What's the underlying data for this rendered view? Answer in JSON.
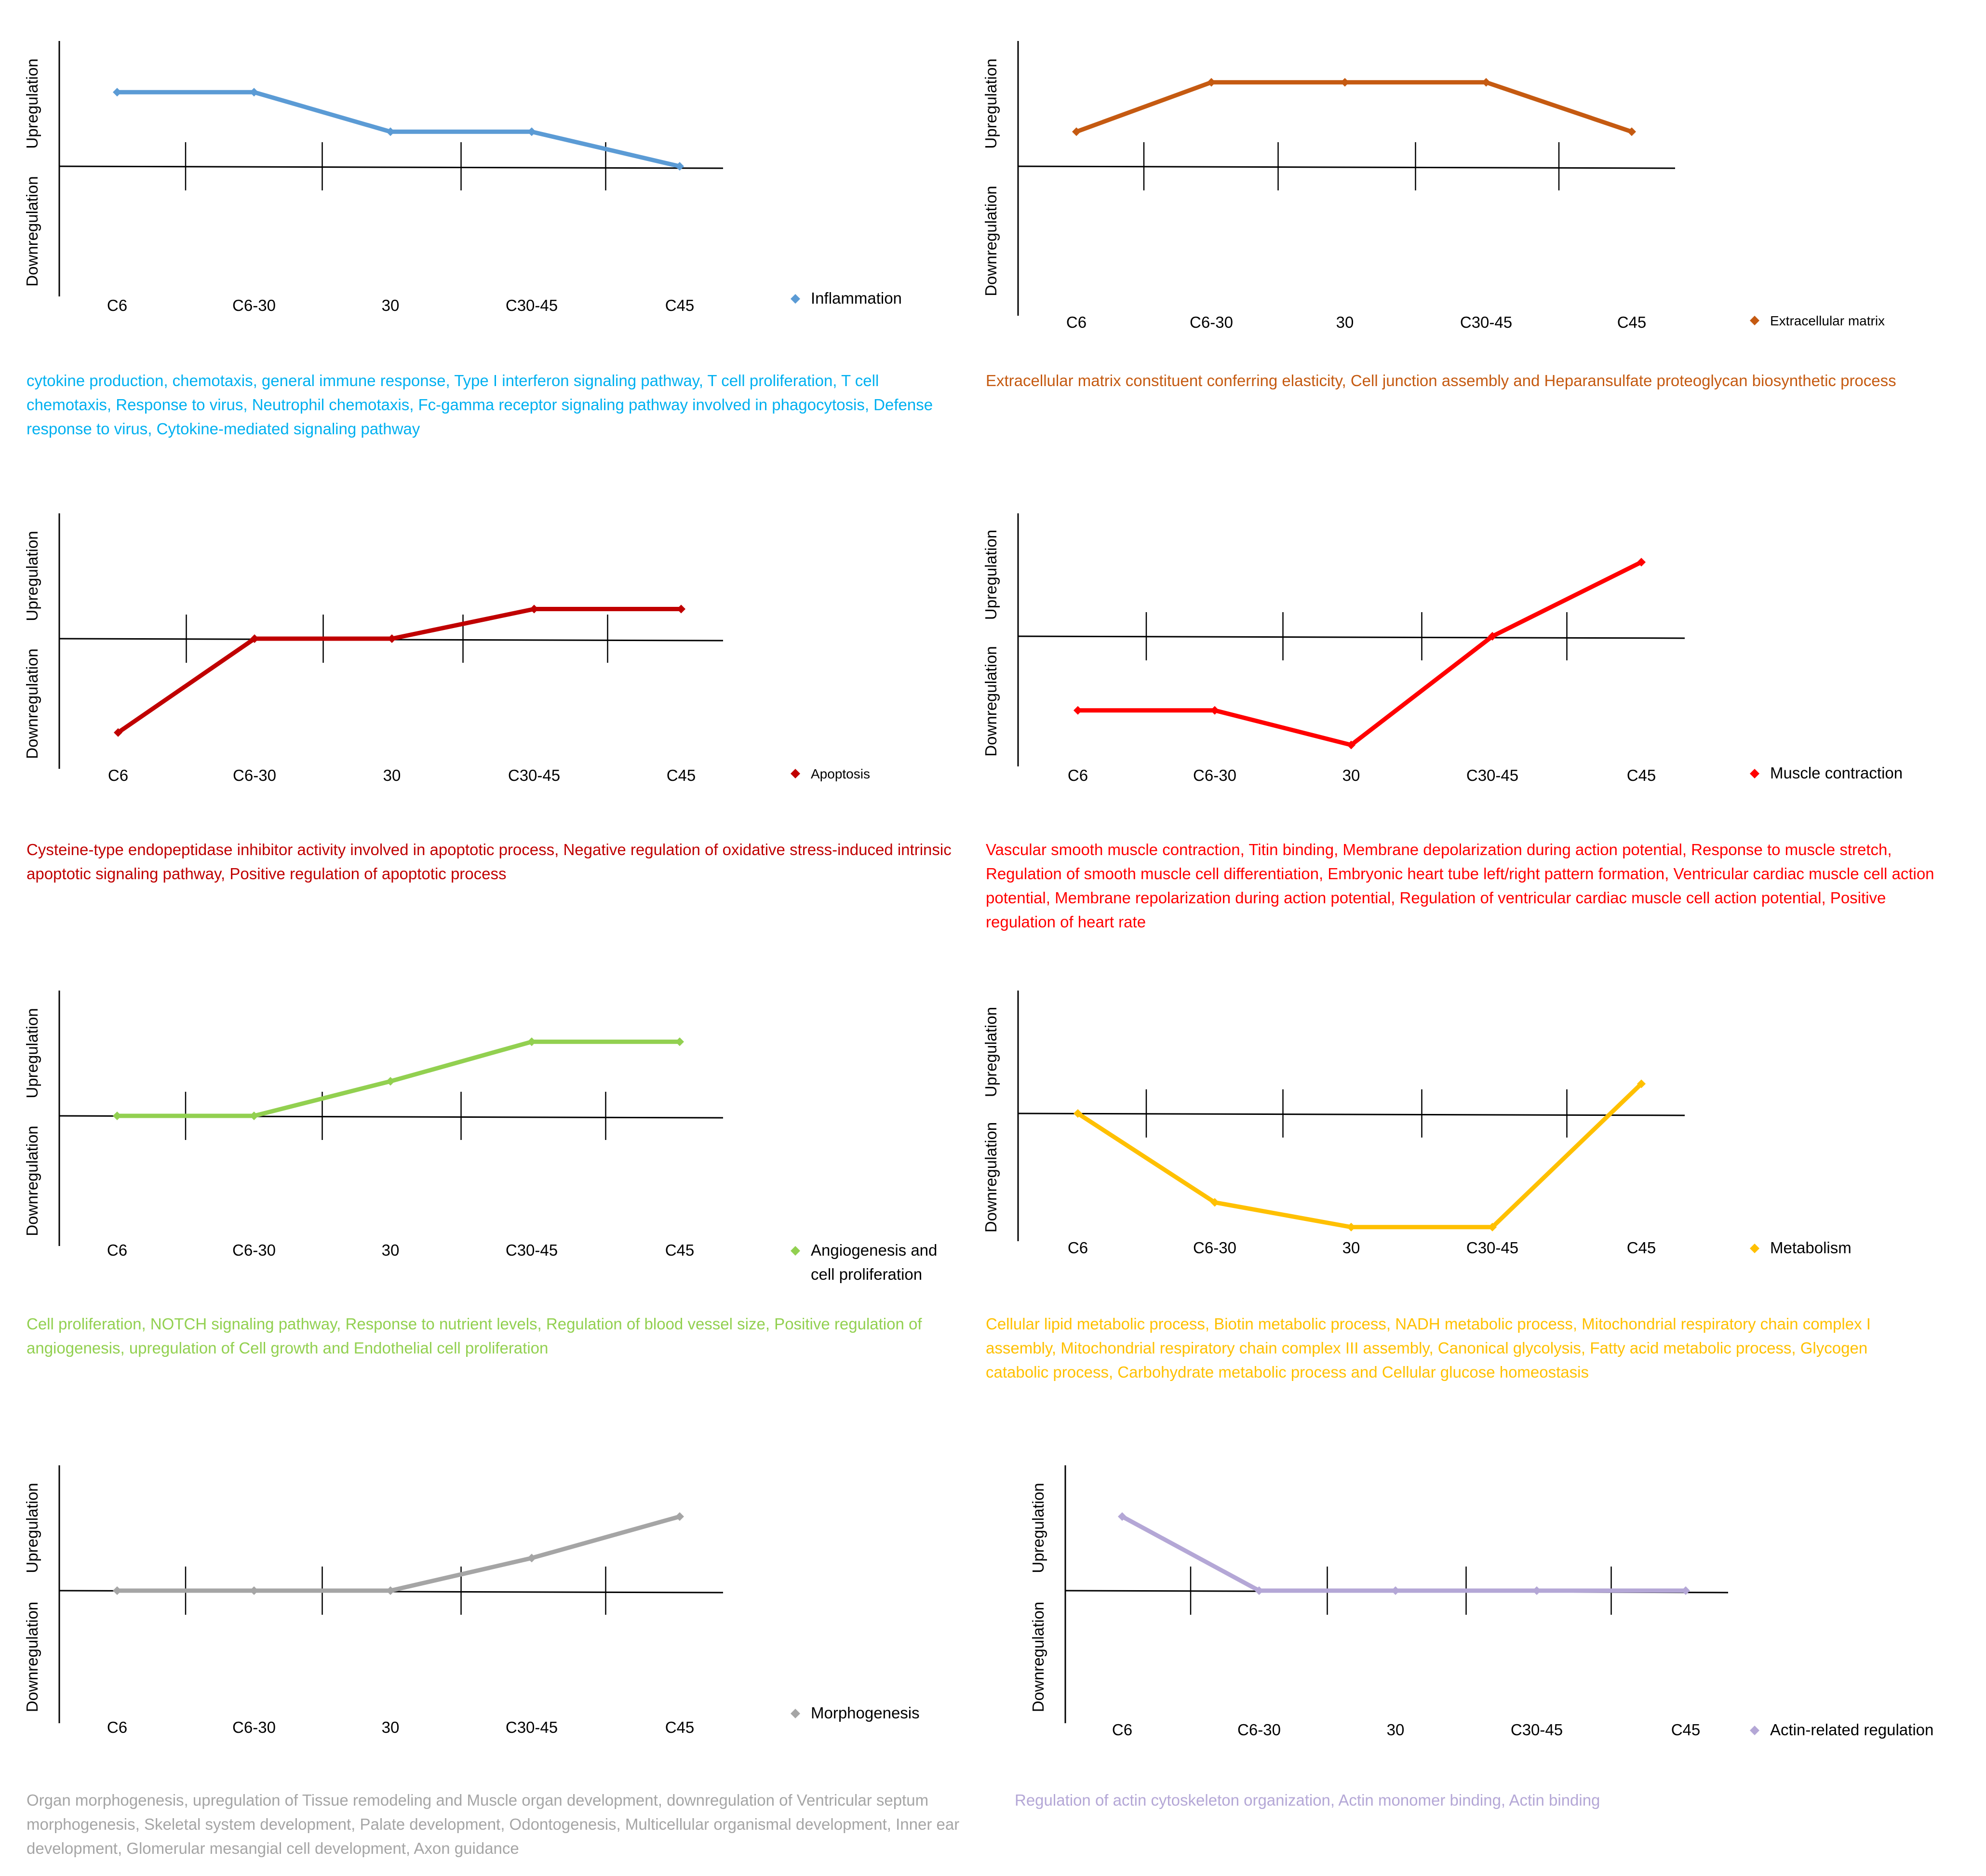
{
  "chart_data": [
    {
      "type": "line",
      "title": "Inflammation",
      "ylabel_up": "Upregulation",
      "ylabel_down": "Downregulation",
      "categories": [
        "C6",
        "C6-30",
        "30",
        "C30-45",
        "C45"
      ],
      "series": [
        {
          "name": "Inflammation",
          "values": [
            0.75,
            0.75,
            0.35,
            0.35,
            0.0
          ]
        }
      ],
      "ylim": [
        -1.3,
        1.3
      ],
      "color": "#5B9BD5",
      "description": "cytokine production, chemotaxis, general immune response, Type I interferon signaling pathway, T cell proliferation, T cell chemotaxis, Response to virus, Neutrophil chemotaxis, Fc-gamma receptor signaling pathway involved in phagocytosis, Defense response to virus, Cytokine-mediated signaling pathway",
      "description_color": "#00B0F0"
    },
    {
      "type": "line",
      "title": "Extracellular matrix",
      "ylabel_up": "Upregulation",
      "ylabel_down": "Downregulation",
      "categories": [
        "C6",
        "C6-30",
        "30",
        "C30-45",
        "C45"
      ],
      "series": [
        {
          "name": "Extracellular matrix",
          "values": [
            0.35,
            0.85,
            0.85,
            0.85,
            0.35
          ]
        }
      ],
      "ylim": [
        -1.3,
        1.3
      ],
      "color": "#C55A11",
      "description": "Extracellular matrix constituent conferring elasticity, Cell junction assembly and Heparansulfate proteoglycan biosynthetic process",
      "description_color": "#C55A11"
    },
    {
      "type": "line",
      "title": "Apoptosis",
      "ylabel_up": "Upregulation",
      "ylabel_down": "Downregulation",
      "categories": [
        "C6",
        "C6-30",
        "30",
        "C30-45",
        "C45"
      ],
      "series": [
        {
          "name": "Apoptosis",
          "values": [
            -0.95,
            0.0,
            0.0,
            0.3,
            0.3
          ]
        }
      ],
      "ylim": [
        -1.3,
        1.3
      ],
      "color": "#C00000",
      "description": "Cysteine-type endopeptidase inhibitor activity involved in apoptotic process, Negative regulation of oxidative stress-induced intrinsic apoptotic signaling pathway, Positive regulation of apoptotic process",
      "description_color": "#C00000"
    },
    {
      "type": "line",
      "title": "Muscle contraction",
      "ylabel_up": "Upregulation",
      "ylabel_down": "Downregulation",
      "categories": [
        "C6",
        "C6-30",
        "30",
        "C30-45",
        "C45"
      ],
      "series": [
        {
          "name": "Muscle contraction",
          "values": [
            -0.75,
            -0.75,
            -1.1,
            0.0,
            0.75
          ]
        }
      ],
      "ylim": [
        -1.3,
        1.3
      ],
      "color": "#FF0000",
      "description": "Vascular smooth muscle contraction, Titin binding, Membrane depolarization during action potential, Response to muscle stretch, Regulation of smooth muscle cell differentiation, Embryonic heart tube left/right pattern formation, Ventricular cardiac muscle cell action potential, Membrane repolarization during action potential, Regulation of ventricular cardiac muscle cell action potential, Positive regulation of heart rate",
      "description_color": "#FF0000"
    },
    {
      "type": "line",
      "title": "Angiogenesis and cell proliferation",
      "ylabel_up": "Upregulation",
      "ylabel_down": "Downregulation",
      "categories": [
        "C6",
        "C6-30",
        "30",
        "C30-45",
        "C45"
      ],
      "series": [
        {
          "name": "Angiogenesis and cell proliferation",
          "values": [
            0.0,
            0.0,
            0.35,
            0.75,
            0.75
          ]
        }
      ],
      "ylim": [
        -1.3,
        1.3
      ],
      "color": "#92D050",
      "description": "Cell proliferation, NOTCH signaling pathway, Response to nutrient levels, Regulation of blood vessel size, Positive regulation of angiogenesis, upregulation of Cell growth and Endothelial cell proliferation",
      "description_color": "#92D050"
    },
    {
      "type": "line",
      "title": "Metabolism",
      "ylabel_up": "Upregulation",
      "ylabel_down": "Downregulation",
      "categories": [
        "C6",
        "C6-30",
        "30",
        "C30-45",
        "C45"
      ],
      "series": [
        {
          "name": "Metabolism",
          "values": [
            0.0,
            -0.9,
            -1.15,
            -1.15,
            0.3
          ]
        }
      ],
      "ylim": [
        -1.3,
        1.3
      ],
      "color": "#FFC000",
      "description": "Cellular lipid metabolic process, Biotin metabolic process, NADH metabolic process, Mitochondrial respiratory chain complex I assembly, Mitochondrial respiratory chain complex III assembly, Canonical glycolysis, Fatty acid metabolic process, Glycogen catabolic process, Carbohydrate metabolic process and Cellular glucose homeostasis",
      "description_color": "#FFC000"
    },
    {
      "type": "line",
      "title": "Morphogenesis",
      "ylabel_up": "Upregulation",
      "ylabel_down": "Downregulation",
      "categories": [
        "C6",
        "C6-30",
        "30",
        "C30-45",
        "C45"
      ],
      "series": [
        {
          "name": "Morphogenesis",
          "values": [
            0.0,
            0.0,
            0.0,
            0.33,
            0.75
          ]
        }
      ],
      "ylim": [
        -1.3,
        1.3
      ],
      "color": "#A5A5A5",
      "description": "Organ morphogenesis, upregulation of Tissue remodeling and Muscle organ development, downregulation of Ventricular septum morphogenesis, Skeletal system development, Palate development, Odontogenesis, Multicellular organismal development, Inner ear development, Glomerular mesangial cell development, Axon guidance",
      "description_color": "#A5A5A5"
    },
    {
      "type": "line",
      "title": "Actin-related regulation",
      "ylabel_up": "Upregulation",
      "ylabel_down": "Downregulation",
      "categories": [
        "C6",
        "C6-30",
        "30",
        "C30-45",
        "C45"
      ],
      "series": [
        {
          "name": "Actin-related regulation",
          "values": [
            0.75,
            0.0,
            0.0,
            0.0,
            0.0
          ]
        }
      ],
      "ylim": [
        -1.3,
        1.3
      ],
      "color": "#B4A7D6",
      "description": "Regulation of actin cytoskeleton organization, Actin monomer binding, Actin binding",
      "description_color": "#B4A7D6"
    }
  ]
}
